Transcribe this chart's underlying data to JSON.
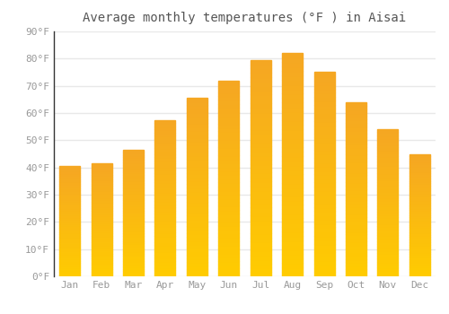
{
  "title": "Average monthly temperatures (°F ) in Aisai",
  "months": [
    "Jan",
    "Feb",
    "Mar",
    "Apr",
    "May",
    "Jun",
    "Jul",
    "Aug",
    "Sep",
    "Oct",
    "Nov",
    "Dec"
  ],
  "values": [
    40.5,
    41.5,
    46.5,
    57.5,
    65.5,
    72,
    79.5,
    82,
    75,
    64,
    54,
    45
  ],
  "ylim": [
    0,
    90
  ],
  "yticks": [
    0,
    10,
    20,
    30,
    40,
    50,
    60,
    70,
    80,
    90
  ],
  "background_color": "#ffffff",
  "grid_color": "#e8e8e8",
  "bar_color_bottom": "#FFCC00",
  "bar_color_top": "#F5A623",
  "title_fontsize": 10,
  "tick_fontsize": 8,
  "tick_color": "#999999",
  "title_color": "#555555",
  "bar_width": 0.65
}
